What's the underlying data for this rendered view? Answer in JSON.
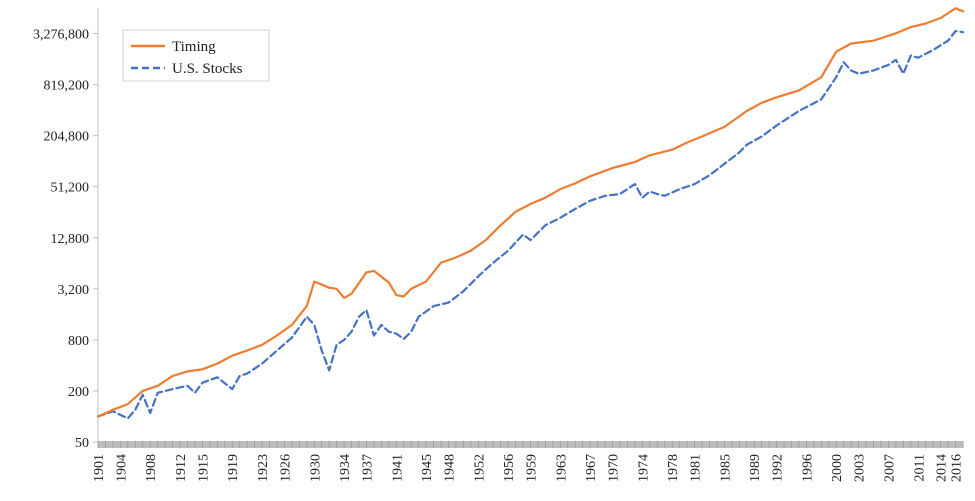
{
  "chart_data": {
    "type": "line",
    "title": "",
    "xlabel": "",
    "ylabel": "",
    "y_scale": "log",
    "ylim": [
      50,
      6553600
    ],
    "xlim": [
      1901,
      2017
    ],
    "y_ticks": [
      {
        "value": 50,
        "label": "50"
      },
      {
        "value": 200,
        "label": "200"
      },
      {
        "value": 800,
        "label": "800"
      },
      {
        "value": 3200,
        "label": "3,200"
      },
      {
        "value": 12800,
        "label": "12,800"
      },
      {
        "value": 51200,
        "label": "51,200"
      },
      {
        "value": 204800,
        "label": "204,800"
      },
      {
        "value": 819200,
        "label": "819,200"
      },
      {
        "value": 3276800,
        "label": "3,276,800"
      }
    ],
    "x_ticks": [
      1901,
      1904,
      1908,
      1912,
      1915,
      1919,
      1923,
      1926,
      1930,
      1934,
      1937,
      1941,
      1945,
      1948,
      1952,
      1956,
      1959,
      1963,
      1967,
      1970,
      1974,
      1978,
      1981,
      1985,
      1989,
      1992,
      1996,
      2000,
      2003,
      2007,
      2011,
      2014,
      2016
    ],
    "grid": false,
    "legend_position": "top-left",
    "series": [
      {
        "name": "Timing",
        "color": "#ED7D31",
        "style": "solid",
        "x": [
          1901,
          1903,
          1905,
          1907,
          1909,
          1911,
          1913,
          1915,
          1917,
          1919,
          1921,
          1923,
          1925,
          1927,
          1929,
          1930,
          1932,
          1933,
          1934,
          1935,
          1937,
          1938,
          1940,
          1941,
          1942,
          1943,
          1945,
          1947,
          1949,
          1951,
          1953,
          1955,
          1957,
          1959,
          1961,
          1963,
          1965,
          1967,
          1970,
          1973,
          1975,
          1978,
          1980,
          1982,
          1985,
          1988,
          1990,
          1992,
          1995,
          1998,
          2000,
          2002,
          2005,
          2008,
          2010,
          2012,
          2014,
          2016,
          2017
        ],
        "values": [
          100,
          120,
          140,
          200,
          230,
          300,
          340,
          360,
          420,
          520,
          600,
          700,
          900,
          1200,
          2000,
          3900,
          3300,
          3200,
          2500,
          2800,
          5000,
          5200,
          3800,
          2700,
          2600,
          3200,
          3900,
          6500,
          7500,
          9000,
          12000,
          18000,
          26000,
          32000,
          38000,
          48000,
          56000,
          68000,
          85000,
          100000,
          120000,
          140000,
          170000,
          200000,
          260000,
          400000,
          500000,
          580000,
          700000,
          1000000,
          2000000,
          2500000,
          2700000,
          3300000,
          3900000,
          4300000,
          5000000,
          6500000,
          6000000
        ]
      },
      {
        "name": "U.S. Stocks",
        "color": "#4472C4",
        "style": "dashed",
        "x": [
          1901,
          1903,
          1905,
          1906,
          1907,
          1908,
          1909,
          1911,
          1913,
          1914,
          1915,
          1917,
          1919,
          1920,
          1921,
          1923,
          1925,
          1927,
          1929,
          1930,
          1931,
          1932,
          1933,
          1934,
          1935,
          1936,
          1937,
          1938,
          1939,
          1940,
          1941,
          1942,
          1943,
          1944,
          1946,
          1948,
          1950,
          1952,
          1954,
          1956,
          1958,
          1959,
          1961,
          1963,
          1965,
          1967,
          1969,
          1971,
          1973,
          1974,
          1975,
          1976,
          1977,
          1979,
          1981,
          1983,
          1985,
          1987,
          1988,
          1990,
          1992,
          1995,
          1998,
          2000,
          2001,
          2002,
          2003,
          2005,
          2007,
          2008,
          2009,
          2010,
          2011,
          2013,
          2015,
          2016,
          2017
        ],
        "values": [
          100,
          115,
          95,
          120,
          180,
          110,
          190,
          210,
          230,
          190,
          250,
          290,
          210,
          300,
          320,
          420,
          600,
          850,
          1500,
          1200,
          600,
          350,
          700,
          800,
          1000,
          1500,
          1800,
          900,
          1200,
          1000,
          950,
          820,
          1000,
          1500,
          2000,
          2200,
          3000,
          4500,
          6500,
          9000,
          14000,
          12000,
          18000,
          22000,
          28000,
          35000,
          40000,
          42000,
          55000,
          38000,
          45000,
          42000,
          40000,
          48000,
          55000,
          70000,
          95000,
          130000,
          160000,
          200000,
          270000,
          400000,
          550000,
          1000000,
          1500000,
          1200000,
          1100000,
          1200000,
          1400000,
          1600000,
          1100000,
          1800000,
          1700000,
          2100000,
          2700000,
          3500000,
          3400000
        ]
      }
    ]
  }
}
